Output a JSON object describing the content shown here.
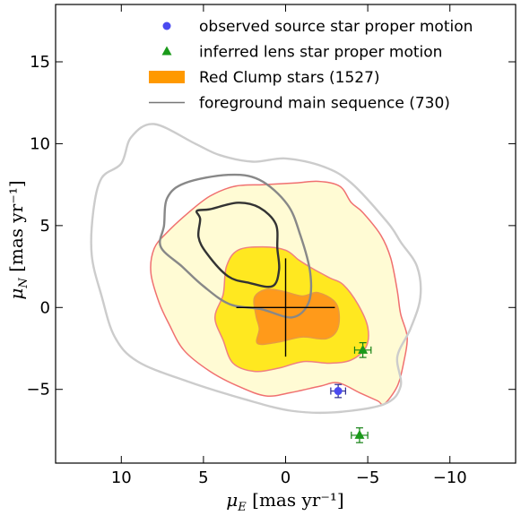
{
  "chart_data": {
    "type": "scatter",
    "xlabel": "μE [mas yr⁻¹]",
    "ylabel": "μN [mas yr⁻¹]",
    "xlim": [
      14,
      -14
    ],
    "ylim": [
      -9.5,
      18.5
    ],
    "x_inverted": true,
    "xticks": [
      10,
      5,
      0,
      -5,
      -10
    ],
    "yticks": [
      15,
      10,
      5,
      0,
      -5
    ],
    "xtick_labels": [
      "10",
      "5",
      "0",
      "−5",
      "−10"
    ],
    "ytick_labels": [
      "15",
      "10",
      "5",
      "0",
      "−5"
    ],
    "grid": false,
    "legend_position": "top-right",
    "legend": [
      {
        "label": "observed source star proper motion",
        "color": "#4a4af0",
        "marker": "circle"
      },
      {
        "label": "inferred lens star proper motion",
        "color": "#1a9a1a",
        "marker": "triangle"
      },
      {
        "label": "Red Clump stars (1527)",
        "color": "#ff9900",
        "marker": "patch"
      },
      {
        "label": "foreground main sequence (730)",
        "color": "#777777",
        "marker": "line"
      }
    ],
    "series": [
      {
        "name": "observed source star proper motion",
        "points": [
          {
            "x": -3.2,
            "y": -5.1,
            "xerr": 0.45,
            "yerr": 0.4
          }
        ]
      },
      {
        "name": "inferred lens star proper motion",
        "points": [
          {
            "x": -4.7,
            "y": -2.6,
            "xerr": 0.5,
            "yerr": 0.45
          },
          {
            "x": -4.5,
            "y": -7.8,
            "xerr": 0.5,
            "yerr": 0.45
          }
        ]
      }
    ],
    "cross": {
      "x": 0,
      "y": 0,
      "x_halfwidth": 3,
      "y_halfheight": 3
    },
    "red_clump_contours": [
      {
        "level": 1,
        "fill": "#fffbd4",
        "stroke": "#f07070",
        "points": [
          [
            3.1,
            7.4
          ],
          [
            1.3,
            7.5
          ],
          [
            -0.6,
            7.6
          ],
          [
            -2,
            7.7
          ],
          [
            -3.3,
            7.4
          ],
          [
            -4,
            6.4
          ],
          [
            -4.7,
            5.8
          ],
          [
            -5.8,
            4.4
          ],
          [
            -6.4,
            3
          ],
          [
            -6.8,
            1
          ],
          [
            -7,
            -0.4
          ],
          [
            -7.4,
            -1.8
          ],
          [
            -7.2,
            -3.3
          ],
          [
            -6.8,
            -4.8
          ],
          [
            -6,
            -5.9
          ],
          [
            -5.6,
            -5.7
          ],
          [
            -4.5,
            -5.2
          ],
          [
            -3.2,
            -4.6
          ],
          [
            -2.1,
            -4.8
          ],
          [
            -0.3,
            -5.2
          ],
          [
            1.2,
            -5.4
          ],
          [
            2.9,
            -4.8
          ],
          [
            4.6,
            -3.9
          ],
          [
            6.2,
            -2.6
          ],
          [
            7.1,
            -1
          ],
          [
            7.7,
            0.3
          ],
          [
            8.2,
            2.1
          ],
          [
            8,
            3.6
          ],
          [
            7.2,
            4.6
          ],
          [
            5.9,
            5.8
          ],
          [
            4.6,
            6.8
          ]
        ]
      },
      {
        "level": 2,
        "fill": "#ffe820",
        "stroke": "#f08080",
        "points": [
          [
            2.9,
            3.5
          ],
          [
            1.4,
            3.7
          ],
          [
            0,
            3.5
          ],
          [
            -0.8,
            2.9
          ],
          [
            -1.6,
            2.4
          ],
          [
            -2.7,
            1.8
          ],
          [
            -3.5,
            1.4
          ],
          [
            -4.4,
            0.2
          ],
          [
            -5,
            -1.2
          ],
          [
            -4.9,
            -2.4
          ],
          [
            -4,
            -3.2
          ],
          [
            -2.7,
            -3.4
          ],
          [
            -1.1,
            -3.3
          ],
          [
            0.4,
            -3.7
          ],
          [
            1.9,
            -3.9
          ],
          [
            3.2,
            -3.4
          ],
          [
            3.8,
            -2
          ],
          [
            4.3,
            -0.6
          ],
          [
            3.8,
            0.8
          ],
          [
            3.6,
            2.5
          ]
        ]
      },
      {
        "level": 3,
        "fill": "#ff9a1a",
        "stroke": "#e89a40",
        "points": [
          [
            1.2,
            1.1
          ],
          [
            0.2,
            1
          ],
          [
            -1,
            0.7
          ],
          [
            -2,
            0.9
          ],
          [
            -3.1,
            0.2
          ],
          [
            -3.2,
            -1.2
          ],
          [
            -2.5,
            -1.9
          ],
          [
            -1,
            -1.8
          ],
          [
            0.4,
            -2.1
          ],
          [
            1.7,
            -2.2
          ],
          [
            1.6,
            -1.3
          ],
          [
            1.8,
            -0.5
          ],
          [
            1.9,
            0.6
          ]
        ]
      }
    ],
    "main_sequence_contours": [
      {
        "level": 1,
        "stroke": "#cccccc",
        "points": [
          [
            5.5,
            10
          ],
          [
            8,
            11.2
          ],
          [
            9.4,
            10.4
          ],
          [
            10,
            8.8
          ],
          [
            11.2,
            7.9
          ],
          [
            11.7,
            5.9
          ],
          [
            11.8,
            3.2
          ],
          [
            11.2,
            0.7
          ],
          [
            10.4,
            -1.8
          ],
          [
            9,
            -3.3
          ],
          [
            6,
            -4.5
          ],
          [
            2.5,
            -5.6
          ],
          [
            -0.3,
            -6.3
          ],
          [
            -3,
            -6.4
          ],
          [
            -6,
            -5.9
          ],
          [
            -7,
            -4.8
          ],
          [
            -6.8,
            -3
          ],
          [
            -7.6,
            -1.3
          ],
          [
            -8.2,
            0.6
          ],
          [
            -8,
            2.5
          ],
          [
            -7,
            4
          ],
          [
            -6.2,
            5.2
          ],
          [
            -4,
            7.6
          ],
          [
            -2.3,
            8.6
          ],
          [
            0,
            9.1
          ],
          [
            2,
            8.9
          ],
          [
            4,
            9.3
          ]
        ]
      },
      {
        "level": 2,
        "stroke": "#888888",
        "points": [
          [
            7.4,
            5
          ],
          [
            7.2,
            6.7
          ],
          [
            6.1,
            7.6
          ],
          [
            3.5,
            8.1
          ],
          [
            1.6,
            7.8
          ],
          [
            -0.1,
            6.3
          ],
          [
            -0.9,
            4.4
          ],
          [
            -1.5,
            2.1
          ],
          [
            -1.4,
            0.3
          ],
          [
            -0.4,
            -0.6
          ],
          [
            1.5,
            -0.1
          ],
          [
            3.4,
            0.2
          ],
          [
            5,
            1.3
          ],
          [
            6.3,
            2.5
          ],
          [
            7.6,
            3.7
          ]
        ]
      },
      {
        "level": 3,
        "stroke": "#333333",
        "points": [
          [
            5.2,
            5.4
          ],
          [
            5.4,
            5.9
          ],
          [
            4.6,
            6
          ],
          [
            2.9,
            6.4
          ],
          [
            1.6,
            6.1
          ],
          [
            0.6,
            5.1
          ],
          [
            0.5,
            3.6
          ],
          [
            0.4,
            2.3
          ],
          [
            0.8,
            1.3
          ],
          [
            2.2,
            1.5
          ],
          [
            3.5,
            1.9
          ],
          [
            4.8,
            3.3
          ],
          [
            5.3,
            4.3
          ]
        ]
      }
    ]
  }
}
